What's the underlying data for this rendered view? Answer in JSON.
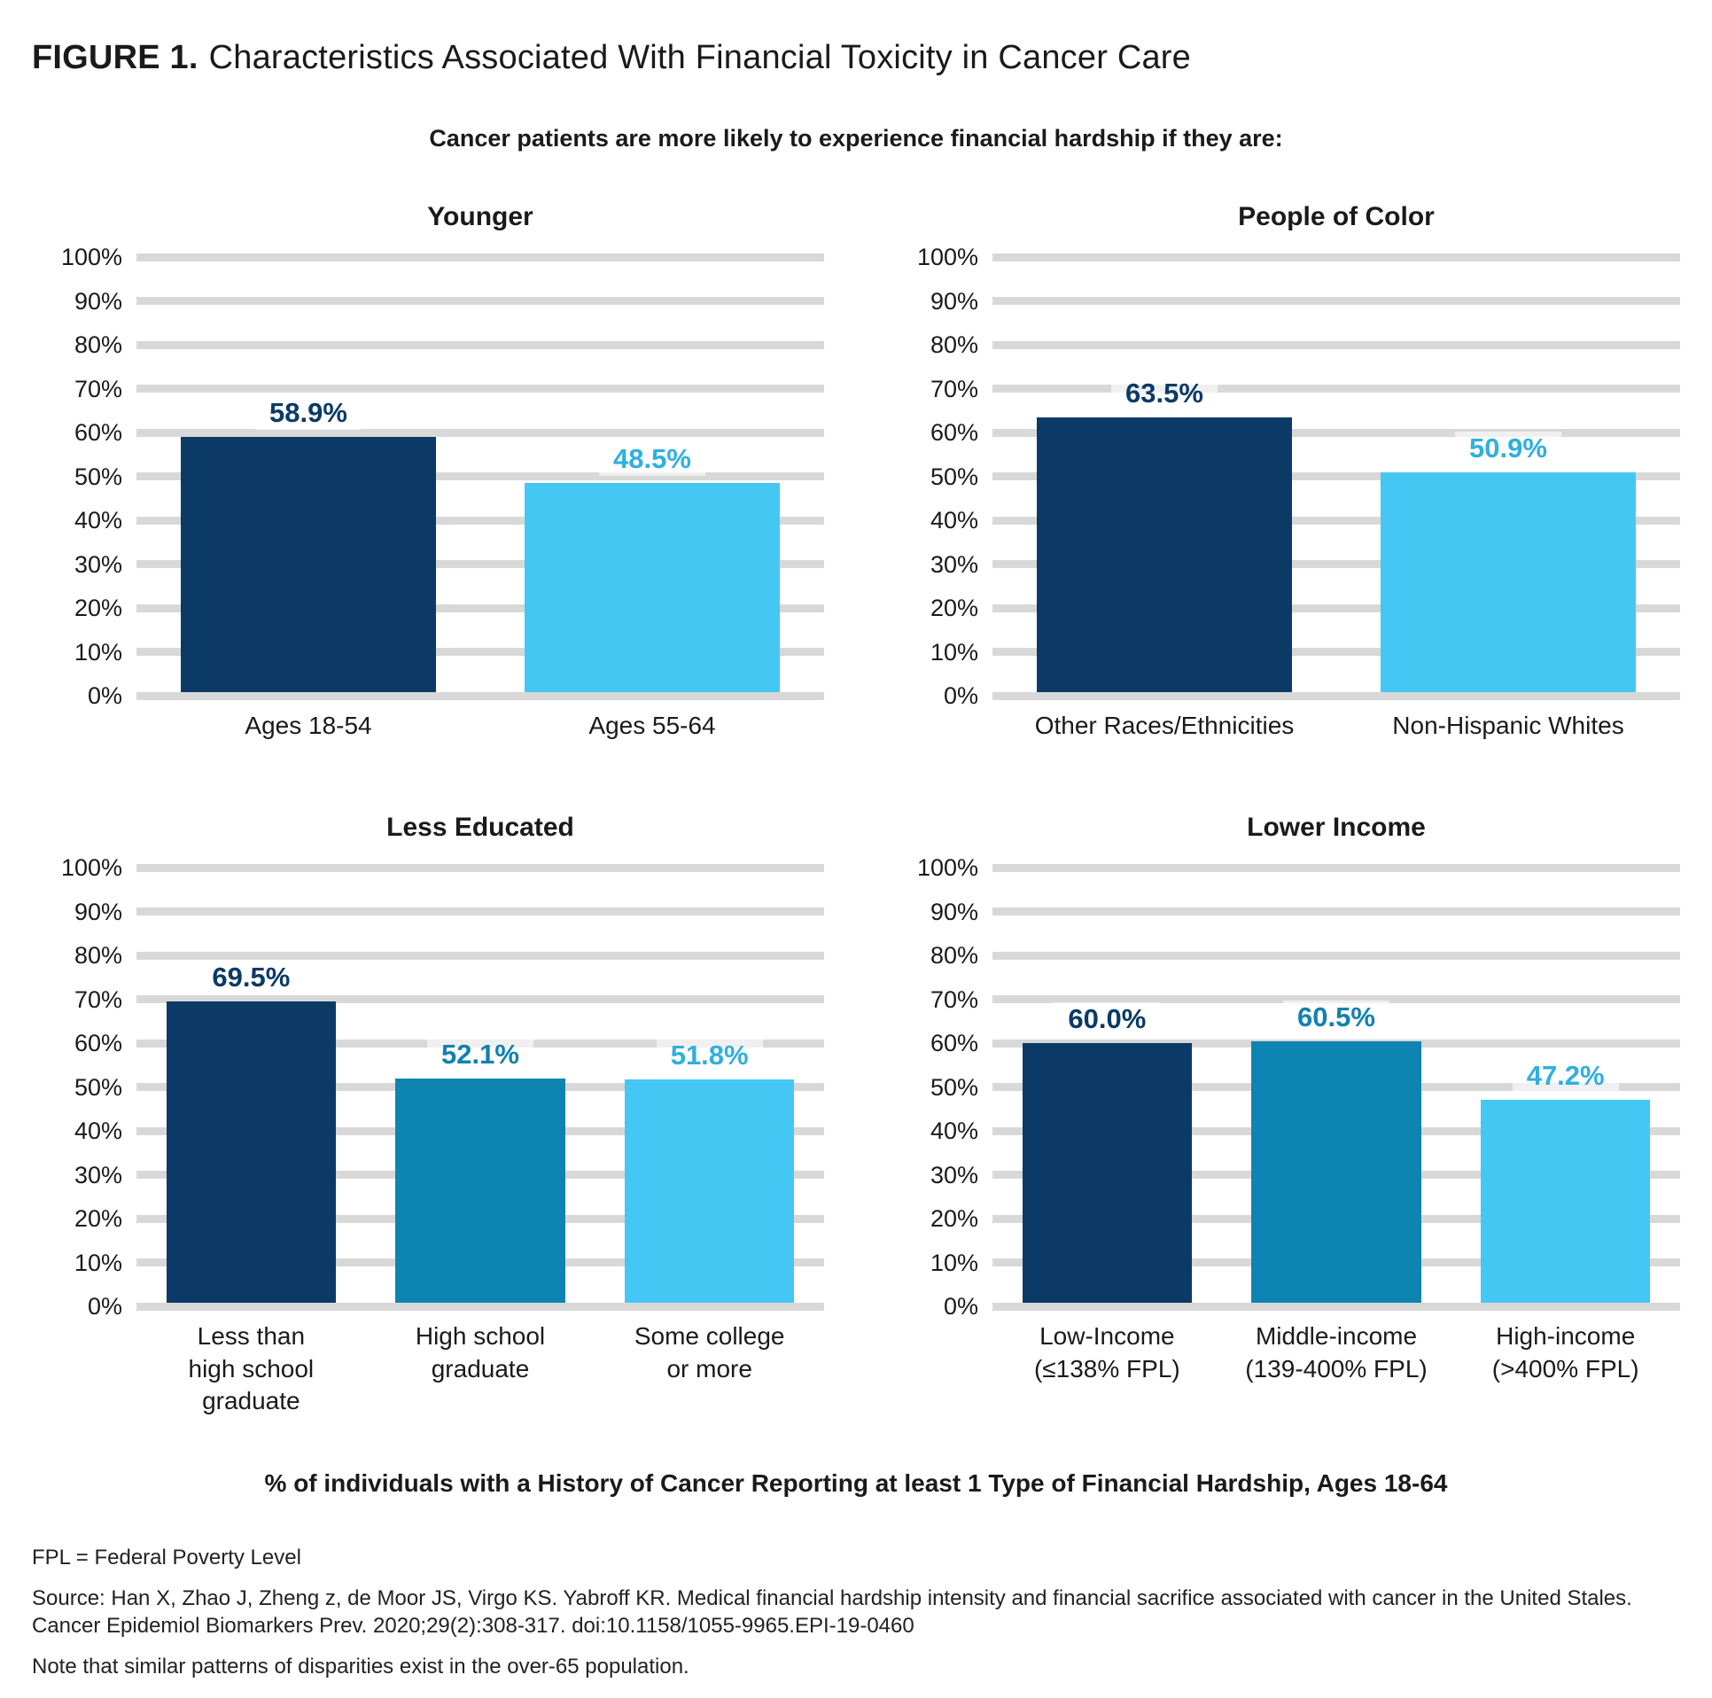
{
  "figure": {
    "label": "FIGURE 1.",
    "title": "Characteristics Associated With Financial Toxicity in Cancer Care",
    "subtitle": "Cancer patients are more likely to experience financial hardship if they are:",
    "bottom_caption": "% of individuals with a History of Cancer Reporting at least 1 Type of Financial Hardship, Ages 18-64"
  },
  "footnotes": [
    "FPL = Federal Poverty Level",
    "Source: Han X, Zhao J, Zheng z, de Moor JS, Virgo KS. Yabroff KR. Medical financial hardship intensity and financial sacrifice associated with cancer in the United Stales. Cancer Epidemiol Biomarkers Prev. 2020;29(2):308-317. doi:10.1158/1055-9965.EPI-19-0460",
    "Note that similar patterns of disparities exist in the over-65 population."
  ],
  "palette": {
    "navy": "#0b3a67",
    "medium": "#0e84b2",
    "light": "#45c7f4",
    "navy_label": "#0b3a67",
    "medium_label": "#1180b0",
    "light_label": "#2fafdf",
    "grid": "#d8d8d8"
  },
  "chart_data": [
    {
      "type": "bar",
      "title": "Younger",
      "categories": [
        "Ages 18-54",
        "Ages 55-64"
      ],
      "values": [
        58.9,
        48.5
      ],
      "value_labels": [
        "58.9%",
        "48.5%"
      ],
      "colors": [
        "navy",
        "light"
      ],
      "label_colors": [
        "navy_label",
        "light_label"
      ],
      "xlabel": "",
      "ylabel": "",
      "ylim": [
        0,
        100
      ],
      "ytick_step": 10,
      "ytick_suffix": "%",
      "grid": true,
      "legend": "none"
    },
    {
      "type": "bar",
      "title": "People of Color",
      "categories": [
        "Other Races/Ethnicities",
        "Non-Hispanic Whites"
      ],
      "values": [
        63.5,
        50.9
      ],
      "value_labels": [
        "63.5%",
        "50.9%"
      ],
      "colors": [
        "navy",
        "light"
      ],
      "label_colors": [
        "navy_label",
        "light_label"
      ],
      "xlabel": "",
      "ylabel": "",
      "ylim": [
        0,
        100
      ],
      "ytick_step": 10,
      "ytick_suffix": "%",
      "grid": true,
      "legend": "none"
    },
    {
      "type": "bar",
      "title": "Less Educated",
      "categories": [
        "Less than\nhigh school graduate",
        "High school\ngraduate",
        "Some college\nor more"
      ],
      "values": [
        69.5,
        52.1,
        51.8
      ],
      "value_labels": [
        "69.5%",
        "52.1%",
        "51.8%"
      ],
      "colors": [
        "navy",
        "medium",
        "light"
      ],
      "label_colors": [
        "navy_label",
        "medium_label",
        "light_label"
      ],
      "xlabel": "",
      "ylabel": "",
      "ylim": [
        0,
        100
      ],
      "ytick_step": 10,
      "ytick_suffix": "%",
      "grid": true,
      "legend": "none"
    },
    {
      "type": "bar",
      "title": "Lower Income",
      "categories": [
        "Low-Income\n(≤138% FPL)",
        "Middle-income\n(139-400% FPL)",
        "High-income\n(>400% FPL)"
      ],
      "values": [
        60.0,
        60.5,
        47.2
      ],
      "value_labels": [
        "60.0%",
        "60.5%",
        "47.2%"
      ],
      "colors": [
        "navy",
        "medium",
        "light"
      ],
      "label_colors": [
        "navy_label",
        "medium_label",
        "light_label"
      ],
      "xlabel": "",
      "ylabel": "",
      "ylim": [
        0,
        100
      ],
      "ytick_step": 10,
      "ytick_suffix": "%",
      "grid": true,
      "legend": "none"
    }
  ]
}
